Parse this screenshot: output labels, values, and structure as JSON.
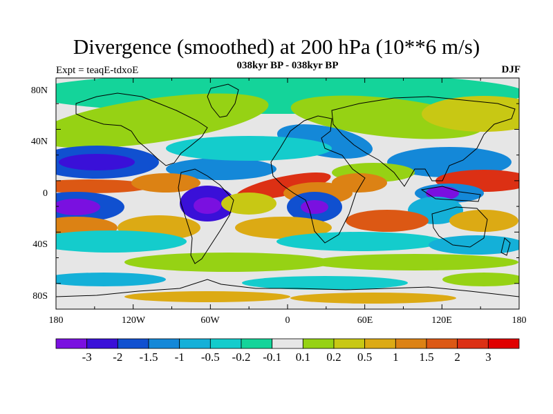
{
  "title": "Divergence (smoothed) at 200 hPa (10**6 m/s)",
  "subtitle": "038kyr BP - 038kyr BP",
  "experiment": "Expt = teaqE-tdxoE",
  "season": "DJF",
  "lat_labels": [
    "80N",
    "40N",
    "0",
    "40S",
    "80S"
  ],
  "lon_labels": [
    "180",
    "120W",
    "60W",
    "0",
    "60E",
    "120E",
    "180"
  ],
  "colorbar": {
    "labels": [
      "-3",
      "-2",
      "-1.5",
      "-1",
      "-0.5",
      "-0.2",
      "-0.1",
      "0.1",
      "0.2",
      "0.5",
      "1",
      "1.5",
      "2",
      "3"
    ],
    "colors": [
      "#7a10e0",
      "#3a10d8",
      "#1050d0",
      "#1488d8",
      "#14b0d8",
      "#14cccc",
      "#14d49a",
      "#e6e6e6",
      "#96d214",
      "#c8c814",
      "#dcaa14",
      "#dc8214",
      "#dc5814",
      "#dc3014",
      "#e00000"
    ]
  },
  "colors": {
    "continent_outline": "#000000",
    "frame": "#000000"
  }
}
